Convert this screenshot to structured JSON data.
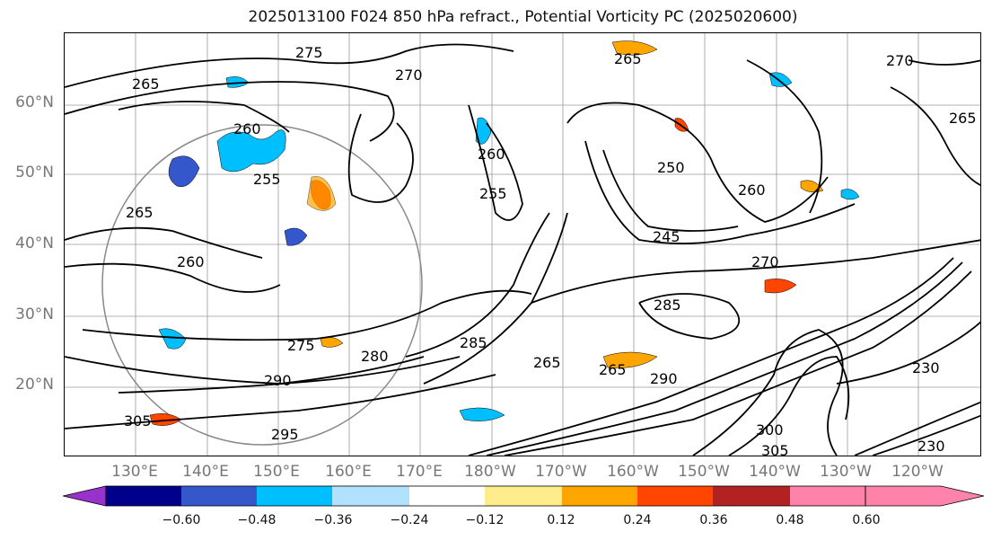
{
  "title": "2025013100 F024 850 hPa refract., Potential Vorticity PC (2025020600)",
  "lat_labels": [
    "60°N",
    "50°N",
    "40°N",
    "30°N",
    "20°N"
  ],
  "lon_labels": [
    "130°E",
    "140°E",
    "150°E",
    "160°E",
    "170°E",
    "180°W",
    "170°W",
    "160°W",
    "150°W",
    "140°W",
    "130°W",
    "120°W"
  ],
  "contour_labels": [
    "275",
    "270",
    "265",
    "265",
    "260",
    "255",
    "260",
    "255",
    "250",
    "260",
    "265",
    "265",
    "270",
    "260",
    "245",
    "270",
    "285",
    "275",
    "280",
    "285",
    "265",
    "265",
    "290",
    "295",
    "305",
    "300",
    "305",
    "290",
    "230",
    "230"
  ],
  "colorbar": {
    "ticks": [
      "−0.60",
      "−0.48",
      "−0.36",
      "−0.24",
      "−0.12",
      "0.12",
      "0.24",
      "0.36",
      "0.48",
      "0.60"
    ],
    "colors": [
      "#9932cc",
      "#00008b",
      "#3458cc",
      "#00bfff",
      "#b0e2ff",
      "#ffffff",
      "#ffec8b",
      "#ffa500",
      "#ff4500",
      "#b22222",
      "#ff82ab"
    ]
  }
}
